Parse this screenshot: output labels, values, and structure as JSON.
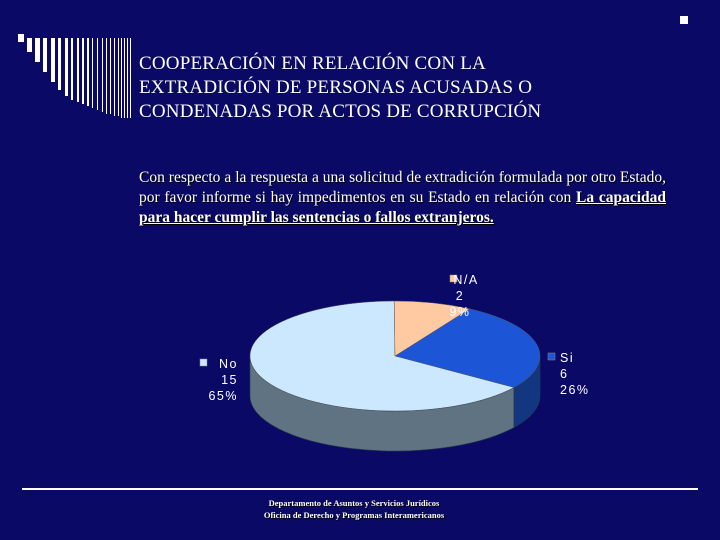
{
  "slide": {
    "title_lines": [
      "COOPERACIÓN EN RELACIÓN CON LA",
      "EXTRADICIÓN DE PERSONAS ACUSADAS O",
      "CONDENADAS POR ACTOS DE CORRUPCIÓN"
    ],
    "question_text": "Con respecto a la respuesta a una solicitud de extradición formulada por otro Estado, por favor informe si hay impedimentos en su Estado en relación con ",
    "question_emphasis": "La capacidad para hacer cumplir las sentencias o fallos extranjeros.",
    "footer_lines": [
      "Departamento de Asuntos y Servicios Jurídicos",
      "Oficina de Derecho y Programas Interamericanos"
    ]
  },
  "chart_data": {
    "type": "pie",
    "title": "",
    "slices": [
      {
        "label": "Si",
        "count": 6,
        "percent": "26%",
        "color": "#1c55d6"
      },
      {
        "label": "No",
        "count": 15,
        "percent": "65%",
        "color": "#cbe8ff"
      },
      {
        "label": "N/A",
        "count": 2,
        "percent": "9%",
        "color": "#ffcaa1"
      }
    ],
    "depth_color": "#5f7383",
    "three_d": true
  }
}
